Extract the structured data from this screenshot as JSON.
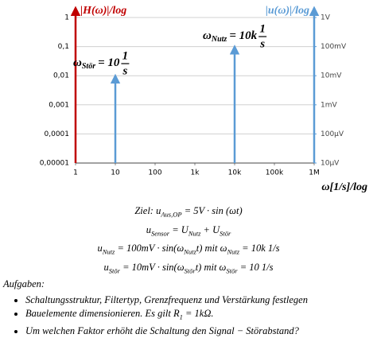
{
  "chart_data": {
    "type": "stem",
    "y_label": "|H(ω)|/log",
    "y2_label": "|u(ω)|/log",
    "x_label": "ω[1/s]/log",
    "y_color": "#c00000",
    "y2_color": "#5b9bd5",
    "log_x": true,
    "log_y": true,
    "grid": true,
    "x": [
      10,
      10000
    ],
    "series": [
      {
        "color": "#5b9bd5",
        "axis": "y2",
        "values": [
          0.01,
          0.1
        ]
      }
    ],
    "xlim": [
      1,
      1000000
    ],
    "xticks": [
      1,
      10,
      100,
      {
        "value": 1000,
        "label": "1k"
      },
      {
        "value": 10000,
        "label": "10k"
      },
      {
        "value": 100000,
        "label": "100k"
      },
      {
        "value": 1000000,
        "label": "1M"
      }
    ],
    "ylim": [
      1e-05,
      1
    ],
    "yticks": [
      {
        "value": 1e-05,
        "label": "0,00001"
      },
      {
        "value": 0.0001,
        "label": "0,0001"
      },
      {
        "value": 0.001,
        "label": "0,001"
      },
      {
        "value": 0.01,
        "label": "0,01"
      },
      {
        "value": 0.1,
        "label": "0,1"
      },
      1
    ],
    "y2lim": [
      1e-05,
      1
    ],
    "y2ticks": [
      {
        "value": 1e-05,
        "label": "10µV"
      },
      {
        "value": 0.0001,
        "label": "100µV"
      },
      {
        "value": 0.001,
        "label": "1mV"
      },
      {
        "value": 0.01,
        "label": "10mV"
      },
      {
        "value": 0.1,
        "label": "100mV"
      },
      {
        "value": 1,
        "label": "1V"
      }
    ],
    "annotations": [
      {
        "symbol": "ω",
        "sub": "Stör",
        "value": "= 10",
        "num": "1",
        "den": "s"
      },
      {
        "symbol": "ω",
        "sub": "Nutz",
        "value": "= 10k",
        "num": "1",
        "den": "s"
      }
    ]
  },
  "equations": [
    [
      "Ziel: u",
      "Aus,OP",
      " = 5V · sin (ωt)"
    ],
    [
      "u",
      "Sensor",
      " = U",
      "Nutz",
      " + U",
      "Stör"
    ],
    [
      "u",
      "Nutz",
      " = 100mV · sin(ω",
      "Nutz",
      "t) mit ω",
      "Nutz",
      " = 10k 1/s"
    ],
    [
      "u",
      "Stör",
      " = 10mV · sin(ω",
      "Stör",
      "t) mit ω",
      "Stör",
      " = 10 1/s"
    ]
  ],
  "tasks": {
    "heading": "Aufgaben:",
    "items": [
      [
        "Schaltungsstruktur, Filtertyp, Grenzfrequenz und Verstärkung festlegen"
      ],
      [
        "Bauelemente dimensionieren. Es gilt R",
        "1",
        " = 1kΩ."
      ],
      [
        "Um welchen Faktor erhöht die Schaltung den Signal − Störabstand?"
      ]
    ]
  }
}
